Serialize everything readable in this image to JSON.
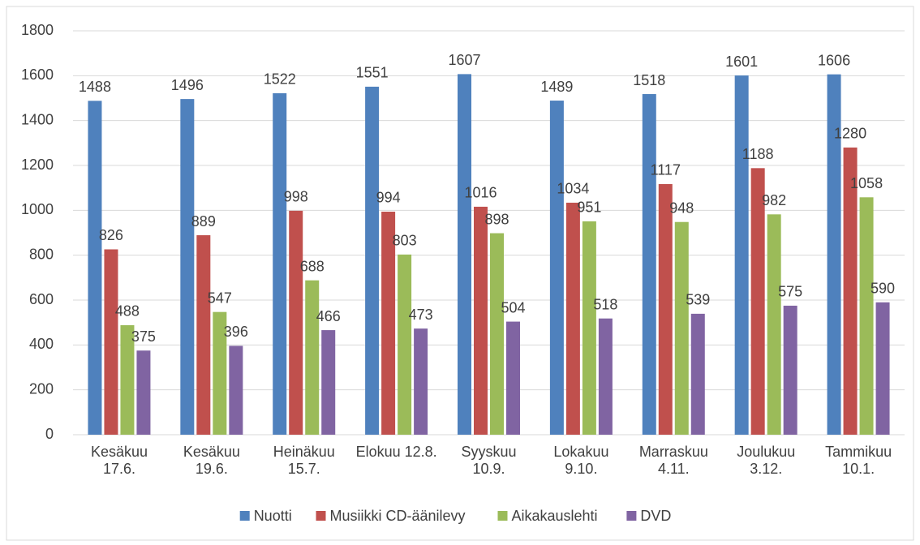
{
  "chart_data": {
    "type": "bar",
    "categories": [
      "Kesäkuu\n17.6.",
      "Kesäkuu\n19.6.",
      "Heinäkuu\n15.7.",
      "Elokuu 12.8.",
      "Syyskuu\n10.9.",
      "Lokakuu\n9.10.",
      "Marraskuu\n4.11.",
      "Joulukuu\n3.12.",
      "Tammikuu\n10.1."
    ],
    "series": [
      {
        "name": "Nuotti",
        "color": "#4f81bd",
        "values": [
          1488,
          1496,
          1522,
          1551,
          1607,
          1489,
          1518,
          1601,
          1606
        ]
      },
      {
        "name": "Musiikki CD-äänilevy",
        "color": "#c0504d",
        "values": [
          826,
          889,
          998,
          994,
          1016,
          1034,
          1117,
          1188,
          1280
        ]
      },
      {
        "name": "Aikakauslehti",
        "color": "#9bbb59",
        "values": [
          488,
          547,
          688,
          803,
          898,
          951,
          948,
          982,
          1058
        ]
      },
      {
        "name": "DVD",
        "color": "#8064a2",
        "values": [
          375,
          396,
          466,
          473,
          504,
          518,
          539,
          575,
          590
        ]
      }
    ],
    "ylim": [
      0,
      1800
    ],
    "yticks": [
      0,
      200,
      400,
      600,
      800,
      1000,
      1200,
      1400,
      1600,
      1800
    ],
    "grid": true,
    "legend": "bottom"
  }
}
